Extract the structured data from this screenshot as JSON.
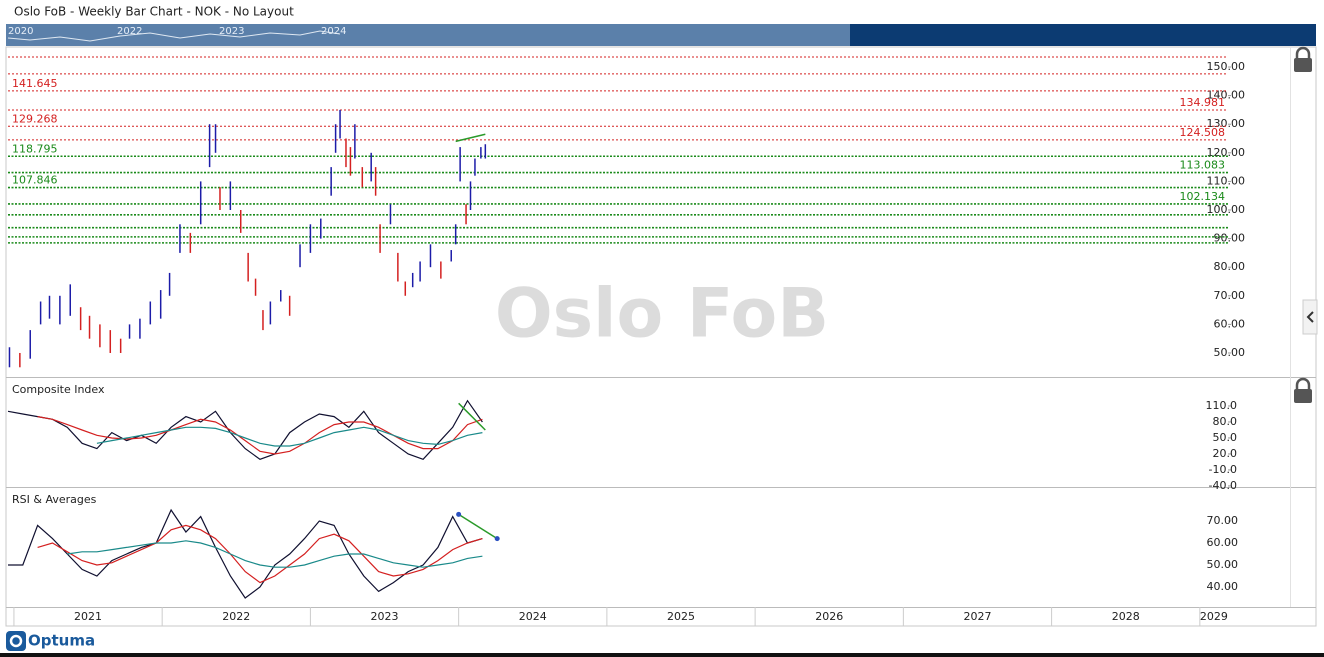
{
  "header": {
    "title": "Oslo FoB - Weekly Bar Chart - NOK - No Layout"
  },
  "navigator": {
    "labels": [
      "2020",
      "2022",
      "2023",
      "2024"
    ]
  },
  "watermark": "Oslo FoB",
  "footer": {
    "logo": "Optuma"
  },
  "chart_data": [
    {
      "type": "ohlc",
      "xlim": [
        2020.96,
        2029.19
      ],
      "ylim": [
        41.6,
        157
      ],
      "yticks": [
        {
          "value": 50,
          "label": "50.00"
        },
        {
          "value": 60,
          "label": "60.00"
        },
        {
          "value": 70,
          "label": "70.00"
        },
        {
          "value": 80,
          "label": "80.00"
        },
        {
          "value": 90,
          "label": "90.00"
        },
        {
          "value": 100,
          "label": "100.00"
        },
        {
          "value": 110,
          "label": "110.00"
        },
        {
          "value": 120,
          "label": "120.00"
        },
        {
          "value": 130,
          "label": "130.00"
        },
        {
          "value": 140,
          "label": "140.00"
        },
        {
          "value": 150,
          "label": "150.00"
        }
      ],
      "up_color": "#1c1ca8",
      "down_color": "#d42020",
      "x": [
        2020.97,
        2021.04,
        2021.11,
        2021.18,
        2021.24,
        2021.31,
        2021.38,
        2021.45,
        2021.51,
        2021.58,
        2021.65,
        2021.72,
        2021.78,
        2021.85,
        2021.92,
        2021.99,
        2022.05,
        2022.12,
        2022.19,
        2022.26,
        2022.32,
        2022.36,
        2022.39,
        2022.46,
        2022.53,
        2022.58,
        2022.63,
        2022.68,
        2022.73,
        2022.8,
        2022.86,
        2022.93,
        2023.0,
        2023.07,
        2023.14,
        2023.17,
        2023.2,
        2023.24,
        2023.27,
        2023.3,
        2023.35,
        2023.41,
        2023.44,
        2023.47,
        2023.54,
        2023.59,
        2023.64,
        2023.69,
        2023.74,
        2023.81,
        2023.88,
        2023.95,
        2023.98,
        2024.01,
        2024.05,
        2024.08,
        2024.11,
        2024.15,
        2024.18
      ],
      "high": [
        52,
        50,
        58,
        68,
        70,
        70,
        74,
        66,
        63,
        60,
        58,
        55,
        60,
        62,
        68,
        72,
        78,
        95,
        92,
        110,
        130,
        130,
        108,
        110,
        100,
        85,
        76,
        65,
        68,
        72,
        70,
        88,
        95,
        97,
        115,
        130,
        135,
        125,
        122,
        130,
        115,
        120,
        115,
        95,
        102,
        85,
        75,
        78,
        82,
        88,
        82,
        86,
        95,
        122,
        102,
        110,
        118,
        122,
        123
      ],
      "low": [
        45,
        45,
        48,
        60,
        62,
        60,
        63,
        58,
        55,
        52,
        50,
        50,
        55,
        55,
        60,
        62,
        70,
        85,
        85,
        95,
        115,
        120,
        100,
        100,
        92,
        75,
        70,
        58,
        60,
        68,
        63,
        80,
        85,
        90,
        105,
        120,
        125,
        115,
        112,
        118,
        108,
        110,
        105,
        85,
        95,
        75,
        70,
        73,
        75,
        80,
        76,
        82,
        88,
        110,
        95,
        100,
        112,
        118,
        118
      ],
      "levels": [
        {
          "value": 153.5,
          "color": "#d42020"
        },
        {
          "value": 147.6,
          "color": "#d42020"
        },
        {
          "value": 98.3,
          "color": "#1a8a1a"
        },
        {
          "value": 93.8,
          "color": "#1a8a1a"
        },
        {
          "value": 90.6,
          "color": "#1a8a1a"
        },
        {
          "value": 88.5,
          "color": "#1a8a1a"
        }
      ],
      "labeled_levels": [
        {
          "value": 141.645,
          "color": "#d42020"
        },
        {
          "value": 134.981,
          "color": "#d42020"
        },
        {
          "value": 129.268,
          "color": "#d42020"
        },
        {
          "value": 124.508,
          "color": "#d42020"
        },
        {
          "value": 118.795,
          "color": "#1a8a1a"
        },
        {
          "value": 113.083,
          "color": "#1a8a1a"
        },
        {
          "value": 107.846,
          "color": "#1a8a1a"
        },
        {
          "value": 102.134,
          "color": "#1a8a1a"
        }
      ],
      "trendlines": [
        {
          "x": [
            2023.98,
            2024.18
          ],
          "y": [
            124,
            126.5
          ],
          "color": "#2a9a2a"
        }
      ]
    },
    {
      "type": "line",
      "title": "Composite Index",
      "xlim": [
        2020.96,
        2029.19
      ],
      "ylim": [
        -42,
        162.5
      ],
      "yticks": [
        {
          "value": -40,
          "label": "-40.0"
        },
        {
          "value": -10,
          "label": "-10.0"
        },
        {
          "value": 20,
          "label": "20.0"
        },
        {
          "value": 50,
          "label": "50.0"
        },
        {
          "value": 80,
          "label": "80.0"
        },
        {
          "value": 110,
          "label": "110.0"
        }
      ],
      "x": [
        2020.96,
        2021.06,
        2021.16,
        2021.26,
        2021.36,
        2021.46,
        2021.56,
        2021.66,
        2021.76,
        2021.86,
        2021.96,
        2022.06,
        2022.16,
        2022.26,
        2022.36,
        2022.46,
        2022.56,
        2022.66,
        2022.76,
        2022.86,
        2022.96,
        2023.06,
        2023.16,
        2023.26,
        2023.36,
        2023.46,
        2023.56,
        2023.66,
        2023.76,
        2023.86,
        2023.96,
        2024.06,
        2024.16
      ],
      "series": [
        {
          "color": "#101030",
          "values": [
            100,
            95,
            90,
            85,
            70,
            40,
            30,
            60,
            45,
            55,
            40,
            70,
            90,
            80,
            100,
            60,
            30,
            10,
            20,
            60,
            80,
            95,
            90,
            70,
            100,
            60,
            40,
            20,
            10,
            40,
            70,
            120,
            80
          ]
        },
        {
          "color": "#d42020",
          "values": [
            null,
            null,
            90,
            85,
            75,
            65,
            55,
            50,
            48,
            50,
            55,
            65,
            75,
            85,
            80,
            65,
            45,
            25,
            20,
            25,
            40,
            60,
            75,
            80,
            80,
            70,
            55,
            40,
            30,
            30,
            45,
            75,
            85
          ]
        },
        {
          "color": "#1a8a8a",
          "values": [
            null,
            null,
            null,
            null,
            null,
            null,
            40,
            45,
            50,
            55,
            60,
            65,
            70,
            70,
            68,
            60,
            50,
            40,
            35,
            35,
            40,
            50,
            60,
            65,
            70,
            65,
            55,
            45,
            40,
            38,
            45,
            55,
            60
          ]
        }
      ],
      "trendlines": [
        {
          "x": [
            2024.0,
            2024.18
          ],
          "y": [
            115,
            65
          ],
          "color": "#2a9a2a"
        }
      ]
    },
    {
      "type": "line",
      "title": "RSI & Averages",
      "xlim": [
        2020.96,
        2029.19
      ],
      "ylim": [
        30.9,
        85
      ],
      "yticks": [
        {
          "value": 40,
          "label": "40.00"
        },
        {
          "value": 50,
          "label": "50.00"
        },
        {
          "value": 60,
          "label": "60.00"
        },
        {
          "value": 70,
          "label": "70.00"
        }
      ],
      "xticks": [
        2021,
        2022,
        2023,
        2024,
        2025,
        2026,
        2027,
        2028,
        2029
      ],
      "x": [
        2020.96,
        2021.06,
        2021.16,
        2021.26,
        2021.36,
        2021.46,
        2021.56,
        2021.66,
        2021.76,
        2021.86,
        2021.96,
        2022.06,
        2022.16,
        2022.26,
        2022.36,
        2022.46,
        2022.56,
        2022.66,
        2022.76,
        2022.86,
        2022.96,
        2023.06,
        2023.16,
        2023.26,
        2023.36,
        2023.46,
        2023.56,
        2023.66,
        2023.76,
        2023.86,
        2023.96,
        2024.06,
        2024.16
      ],
      "series": [
        {
          "color": "#101030",
          "values": [
            50,
            50,
            68,
            62,
            55,
            48,
            45,
            52,
            55,
            58,
            60,
            75,
            65,
            72,
            58,
            45,
            35,
            40,
            50,
            55,
            62,
            70,
            68,
            55,
            45,
            38,
            42,
            47,
            50,
            58,
            72,
            60,
            62
          ]
        },
        {
          "color": "#d42020",
          "values": [
            null,
            null,
            58,
            60,
            56,
            52,
            50,
            51,
            54,
            57,
            60,
            66,
            68,
            66,
            62,
            55,
            47,
            42,
            45,
            50,
            55,
            62,
            64,
            61,
            54,
            47,
            45,
            46,
            48,
            52,
            57,
            60,
            62
          ]
        },
        {
          "color": "#1a8a8a",
          "values": [
            null,
            null,
            null,
            null,
            55,
            56,
            56,
            57,
            58,
            59,
            60,
            60,
            61,
            60,
            58,
            55,
            52,
            50,
            49,
            49,
            50,
            52,
            54,
            55,
            55,
            53,
            51,
            50,
            49,
            50,
            51,
            53,
            54
          ]
        }
      ],
      "trendlines": [
        {
          "x": [
            2024.0,
            2024.26
          ],
          "y": [
            73,
            62
          ],
          "color": "#2a9a2a"
        }
      ]
    }
  ]
}
